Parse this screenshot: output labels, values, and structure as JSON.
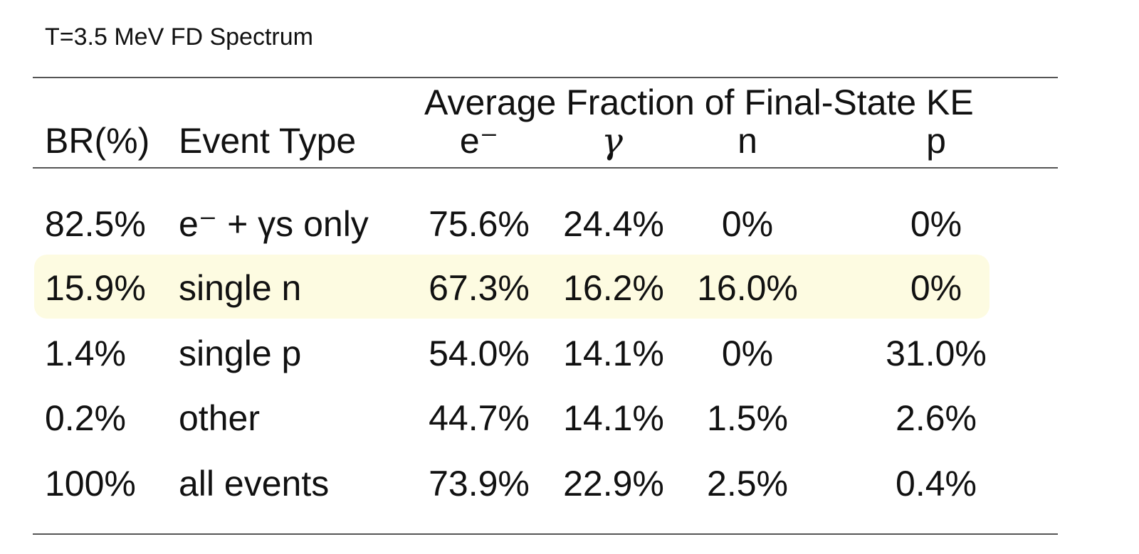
{
  "caption": "T=3.5 MeV FD Spectrum",
  "header": {
    "group_title": "Average Fraction of Final-State KE",
    "br": "BR(%)",
    "event_type": "Event Type",
    "electron": "e⁻",
    "gamma": "γ",
    "neutron": "n",
    "proton": "p"
  },
  "rows": [
    {
      "br": "82.5%",
      "event": "e⁻ + γs only",
      "e": "75.6%",
      "gamma": "24.4%",
      "n": "0%",
      "p": "0%"
    },
    {
      "br": "15.9%",
      "event": "single n",
      "e": "67.3%",
      "gamma": "16.2%",
      "n": "16.0%",
      "p": "0%"
    },
    {
      "br": "1.4%",
      "event": "single p",
      "e": "54.0%",
      "gamma": "14.1%",
      "n": "0%",
      "p": "31.0%"
    },
    {
      "br": "0.2%",
      "event": "other",
      "e": "44.7%",
      "gamma": "14.1%",
      "n": "1.5%",
      "p": "2.6%"
    },
    {
      "br": "100%",
      "event": "all events",
      "e": "73.9%",
      "gamma": "22.9%",
      "n": "2.5%",
      "p": "0.4%"
    }
  ],
  "colors": {
    "highlight": "#fdfbe1",
    "rule": "#555555",
    "text": "#111111"
  }
}
